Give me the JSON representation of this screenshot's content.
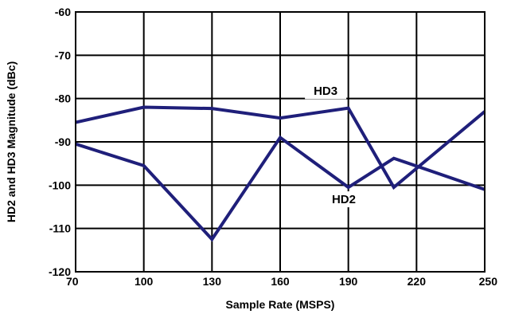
{
  "chart_data": {
    "type": "line",
    "title": "",
    "xlabel": "Sample Rate (MSPS)",
    "ylabel": "HD2 and HD3 Magnitude (dBc)",
    "xlim": [
      70,
      250
    ],
    "ylim": [
      -120,
      -60
    ],
    "x_ticks": [
      70,
      100,
      130,
      160,
      190,
      220,
      250
    ],
    "y_ticks": [
      -60,
      -70,
      -80,
      -90,
      -100,
      -110,
      -120
    ],
    "grid": true,
    "line_color": "#1f1f7a",
    "series": [
      {
        "name": "HD3",
        "x": [
          70,
          100,
          130,
          160,
          190,
          210,
          250
        ],
        "y": [
          -85.5,
          -82,
          -82.3,
          -84.5,
          -82.2,
          -100.5,
          -83
        ]
      },
      {
        "name": "HD2",
        "x": [
          70,
          100,
          130,
          160,
          190,
          210,
          250
        ],
        "y": [
          -90.5,
          -95.5,
          -112.5,
          -89,
          -100.5,
          -93.8,
          -101
        ]
      }
    ],
    "annotations": [
      {
        "text": "HD3",
        "x": 180,
        "y": -79,
        "series": "HD3"
      },
      {
        "text": "HD2",
        "x": 188,
        "y": -104,
        "series": "HD2"
      }
    ]
  }
}
